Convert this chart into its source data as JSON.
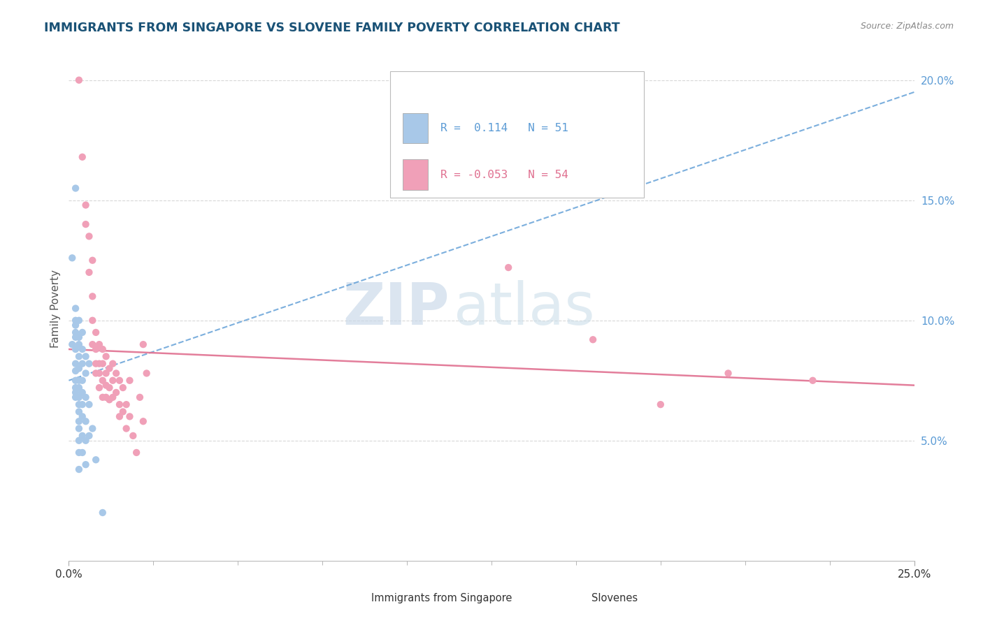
{
  "title": "IMMIGRANTS FROM SINGAPORE VS SLOVENE FAMILY POVERTY CORRELATION CHART",
  "source": "Source: ZipAtlas.com",
  "ylabel": "Family Poverty",
  "xlim": [
    0.0,
    0.25
  ],
  "ylim": [
    0.0,
    0.21
  ],
  "R_singapore": 0.114,
  "N_singapore": 51,
  "R_slovene": -0.053,
  "N_slovene": 54,
  "watermark_zip": "ZIP",
  "watermark_atlas": "atlas",
  "title_color": "#1a5276",
  "singapore_color": "#a8c8e8",
  "slovene_color": "#f0a0b8",
  "singapore_line_color": "#5b9bd5",
  "slovene_line_color": "#e07090",
  "grid_color": "#d8d8d8",
  "singapore_scatter": [
    [
      0.001,
      0.126
    ],
    [
      0.001,
      0.09
    ],
    [
      0.002,
      0.155
    ],
    [
      0.002,
      0.105
    ],
    [
      0.002,
      0.1
    ],
    [
      0.002,
      0.098
    ],
    [
      0.002,
      0.095
    ],
    [
      0.002,
      0.093
    ],
    [
      0.002,
      0.088
    ],
    [
      0.002,
      0.082
    ],
    [
      0.002,
      0.079
    ],
    [
      0.002,
      0.075
    ],
    [
      0.002,
      0.072
    ],
    [
      0.002,
      0.07
    ],
    [
      0.002,
      0.068
    ],
    [
      0.003,
      0.1
    ],
    [
      0.003,
      0.093
    ],
    [
      0.003,
      0.09
    ],
    [
      0.003,
      0.085
    ],
    [
      0.003,
      0.08
    ],
    [
      0.003,
      0.075
    ],
    [
      0.003,
      0.072
    ],
    [
      0.003,
      0.068
    ],
    [
      0.003,
      0.065
    ],
    [
      0.003,
      0.062
    ],
    [
      0.003,
      0.058
    ],
    [
      0.003,
      0.055
    ],
    [
      0.003,
      0.05
    ],
    [
      0.003,
      0.045
    ],
    [
      0.003,
      0.038
    ],
    [
      0.004,
      0.095
    ],
    [
      0.004,
      0.088
    ],
    [
      0.004,
      0.082
    ],
    [
      0.004,
      0.075
    ],
    [
      0.004,
      0.07
    ],
    [
      0.004,
      0.065
    ],
    [
      0.004,
      0.06
    ],
    [
      0.004,
      0.052
    ],
    [
      0.004,
      0.045
    ],
    [
      0.005,
      0.085
    ],
    [
      0.005,
      0.078
    ],
    [
      0.005,
      0.068
    ],
    [
      0.005,
      0.058
    ],
    [
      0.005,
      0.05
    ],
    [
      0.005,
      0.04
    ],
    [
      0.006,
      0.082
    ],
    [
      0.006,
      0.065
    ],
    [
      0.006,
      0.052
    ],
    [
      0.007,
      0.055
    ],
    [
      0.008,
      0.042
    ],
    [
      0.01,
      0.02
    ]
  ],
  "slovene_scatter": [
    [
      0.003,
      0.2
    ],
    [
      0.004,
      0.168
    ],
    [
      0.005,
      0.148
    ],
    [
      0.005,
      0.14
    ],
    [
      0.006,
      0.135
    ],
    [
      0.006,
      0.12
    ],
    [
      0.007,
      0.125
    ],
    [
      0.007,
      0.11
    ],
    [
      0.007,
      0.1
    ],
    [
      0.007,
      0.09
    ],
    [
      0.008,
      0.095
    ],
    [
      0.008,
      0.088
    ],
    [
      0.008,
      0.082
    ],
    [
      0.008,
      0.078
    ],
    [
      0.009,
      0.09
    ],
    [
      0.009,
      0.082
    ],
    [
      0.009,
      0.078
    ],
    [
      0.009,
      0.072
    ],
    [
      0.01,
      0.088
    ],
    [
      0.01,
      0.082
    ],
    [
      0.01,
      0.075
    ],
    [
      0.01,
      0.068
    ],
    [
      0.011,
      0.085
    ],
    [
      0.011,
      0.078
    ],
    [
      0.011,
      0.073
    ],
    [
      0.011,
      0.068
    ],
    [
      0.012,
      0.08
    ],
    [
      0.012,
      0.072
    ],
    [
      0.012,
      0.067
    ],
    [
      0.013,
      0.082
    ],
    [
      0.013,
      0.075
    ],
    [
      0.013,
      0.068
    ],
    [
      0.014,
      0.078
    ],
    [
      0.014,
      0.07
    ],
    [
      0.015,
      0.075
    ],
    [
      0.015,
      0.065
    ],
    [
      0.015,
      0.06
    ],
    [
      0.016,
      0.072
    ],
    [
      0.016,
      0.062
    ],
    [
      0.017,
      0.065
    ],
    [
      0.017,
      0.055
    ],
    [
      0.018,
      0.075
    ],
    [
      0.018,
      0.06
    ],
    [
      0.019,
      0.052
    ],
    [
      0.02,
      0.045
    ],
    [
      0.021,
      0.068
    ],
    [
      0.022,
      0.058
    ],
    [
      0.022,
      0.09
    ],
    [
      0.023,
      0.078
    ],
    [
      0.13,
      0.122
    ],
    [
      0.155,
      0.092
    ],
    [
      0.175,
      0.065
    ],
    [
      0.195,
      0.078
    ],
    [
      0.22,
      0.075
    ]
  ]
}
